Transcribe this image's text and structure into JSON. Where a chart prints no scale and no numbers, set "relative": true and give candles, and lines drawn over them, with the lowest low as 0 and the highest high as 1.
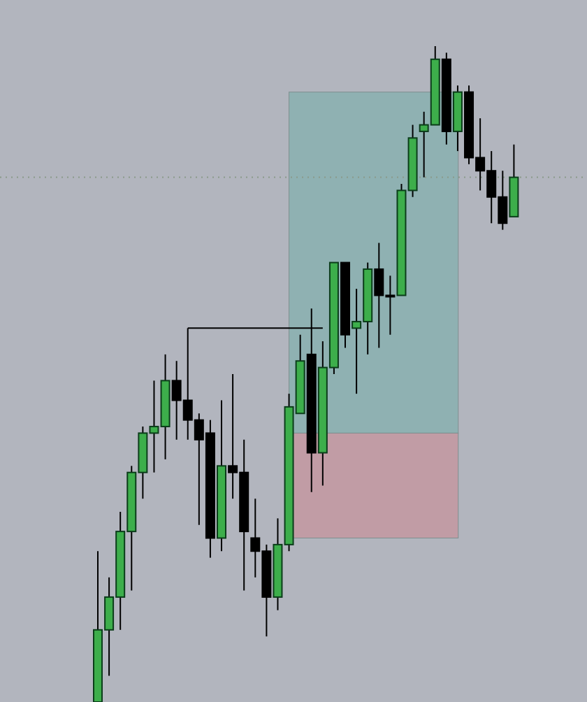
{
  "chart_data": {
    "type": "candlestick",
    "relative": true,
    "categories": [
      null,
      null,
      null,
      null,
      null,
      null,
      null,
      null,
      null,
      null,
      null,
      null,
      null,
      null,
      null,
      null,
      null,
      null,
      null,
      null,
      null,
      null,
      null,
      null,
      null,
      null,
      null,
      null,
      null,
      null,
      null,
      null,
      null,
      null,
      null,
      null,
      null,
      null
    ],
    "ohlc": [
      [
        0,
        0.23,
        0,
        0.11
      ],
      [
        0.11,
        0.19,
        0.04,
        0.16
      ],
      [
        0.16,
        0.29,
        0.11,
        0.26
      ],
      [
        0.26,
        0.36,
        0.17,
        0.35
      ],
      [
        0.35,
        0.42,
        0.31,
        0.41
      ],
      [
        0.41,
        0.49,
        0.35,
        0.42
      ],
      [
        0.42,
        0.53,
        0.37,
        0.49
      ],
      [
        0.49,
        0.52,
        0.4,
        0.46
      ],
      [
        0.46,
        0.57,
        0.4,
        0.43
      ],
      [
        0.43,
        0.44,
        0.27,
        0.4
      ],
      [
        0.41,
        0.43,
        0.22,
        0.25
      ],
      [
        0.25,
        0.46,
        0.23,
        0.36
      ],
      [
        0.36,
        0.5,
        0.31,
        0.35
      ],
      [
        0.35,
        0.4,
        0.17,
        0.26
      ],
      [
        0.25,
        0.31,
        0.19,
        0.23
      ],
      [
        0.23,
        0.24,
        0.1,
        0.16
      ],
      [
        0.16,
        0.28,
        0.14,
        0.24
      ],
      [
        0.24,
        0.47,
        0.23,
        0.45
      ],
      [
        0.44,
        0.56,
        0.44,
        0.52
      ],
      [
        0.53,
        0.6,
        0.32,
        0.38
      ],
      [
        0.38,
        0.55,
        0.33,
        0.51
      ],
      [
        0.51,
        0.67,
        0.5,
        0.67
      ],
      [
        0.67,
        0.67,
        0.54,
        0.56
      ],
      [
        0.57,
        0.63,
        0.47,
        0.58
      ],
      [
        0.58,
        0.67,
        0.53,
        0.66
      ],
      [
        0.66,
        0.7,
        0.54,
        0.62
      ],
      [
        0.62,
        0.65,
        0.56,
        0.62
      ],
      [
        0.62,
        0.79,
        0.62,
        0.78
      ],
      [
        0.78,
        0.88,
        0.77,
        0.86
      ],
      [
        0.87,
        0.9,
        0.8,
        0.88
      ],
      [
        0.88,
        1,
        0.88,
        0.98
      ],
      [
        0.98,
        0.99,
        0.85,
        0.87
      ],
      [
        0.87,
        0.94,
        0.84,
        0.93
      ],
      [
        0.93,
        0.94,
        0.82,
        0.83
      ],
      [
        0.83,
        0.89,
        0.78,
        0.81
      ],
      [
        0.81,
        0.84,
        0.73,
        0.77
      ],
      [
        0.77,
        0.81,
        0.72,
        0.73
      ],
      [
        0.74,
        0.85,
        0.74,
        0.8
      ]
    ],
    "colors": [
      "#3dae4b",
      "#3dae4b",
      "#3dae4b",
      "#3dae4b",
      "#3dae4b",
      "#3dae4b",
      "#3dae4b",
      "#000000",
      "#000000",
      "#000000",
      "#000000",
      "#3dae4b",
      "#000000",
      "#000000",
      "#000000",
      "#000000",
      "#3dae4b",
      "#3dae4b",
      "#3dae4b",
      "#000000",
      "#3dae4b",
      "#3dae4b",
      "#000000",
      "#3dae4b",
      "#3dae4b",
      "#000000",
      "#000000",
      "#3dae4b",
      "#3dae4b",
      "#3dae4b",
      "#3dae4b",
      "#000000",
      "#3dae4b",
      "#000000",
      "#000000",
      "#000000",
      "#000000",
      "#3dae4b"
    ],
    "bands": [
      {
        "axis": "y",
        "from": 0.41,
        "to": 0.93,
        "color": "#8fb1b2"
      },
      {
        "axis": "y",
        "from": 0.25,
        "to": 0.41,
        "color": "#c19ca5"
      }
    ],
    "ref_lines": [
      {
        "axis": "y",
        "value": 0.57,
        "color": "#000000",
        "line_style": "solid"
      },
      {
        "axis": "y",
        "value": 0.8,
        "color": "#8a9a8a",
        "line_style": "dotted"
      }
    ]
  }
}
